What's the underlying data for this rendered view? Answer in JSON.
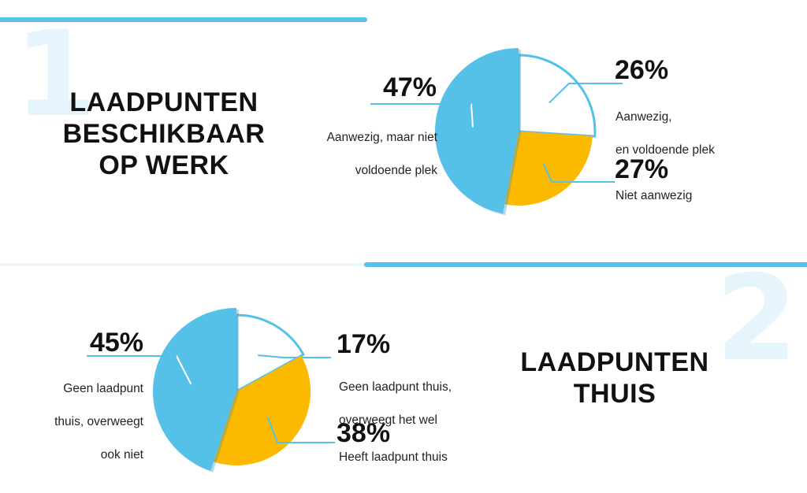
{
  "colors": {
    "blue": "#55c0e8",
    "yellow": "#fbb900",
    "white": "#ffffff",
    "faint_blue": "#e6f5fc",
    "text": "#111111"
  },
  "sections": [
    {
      "number": "1",
      "title_lines": [
        "LAADPUNTEN",
        "BESCHIKBAAR",
        "OP WERK"
      ]
    },
    {
      "number": "2",
      "title_lines": [
        "LAADPUNTEN",
        "THUIS"
      ]
    }
  ],
  "chart_data": [
    {
      "type": "pie",
      "title": "LAADPUNTEN BESCHIKBAAR OP WERK",
      "slices": [
        {
          "label": "Aanwezig, en voldoende plek",
          "value": 26,
          "value_label": "26%",
          "color": "#ffffff"
        },
        {
          "label": "Niet aanwezig",
          "value": 27,
          "value_label": "27%",
          "color": "#fbb900"
        },
        {
          "label": "Aanwezig, maar niet voldoende plek",
          "value": 47,
          "value_label": "47%",
          "color": "#55c0e8"
        }
      ],
      "label_lines": [
        [
          "Aanwezig,",
          "en voldoende plek"
        ],
        [
          "Niet aanwezig"
        ],
        [
          "Aanwezig, maar niet",
          "voldoende plek"
        ]
      ]
    },
    {
      "type": "pie",
      "title": "LAADPUNTEN THUIS",
      "slices": [
        {
          "label": "Geen laadpunt thuis, overweegt het wel",
          "value": 17,
          "value_label": "17%",
          "color": "#ffffff"
        },
        {
          "label": "Heeft laadpunt thuis",
          "value": 38,
          "value_label": "38%",
          "color": "#fbb900"
        },
        {
          "label": "Geen laadpunt thuis, overweegt ook niet",
          "value": 45,
          "value_label": "45%",
          "color": "#55c0e8"
        }
      ],
      "label_lines": [
        [
          "Geen laadpunt thuis,",
          "overweegt het wel"
        ],
        [
          "Heeft laadpunt thuis"
        ],
        [
          "Geen laadpunt",
          "thuis, overweegt",
          "ook niet"
        ]
      ]
    }
  ]
}
